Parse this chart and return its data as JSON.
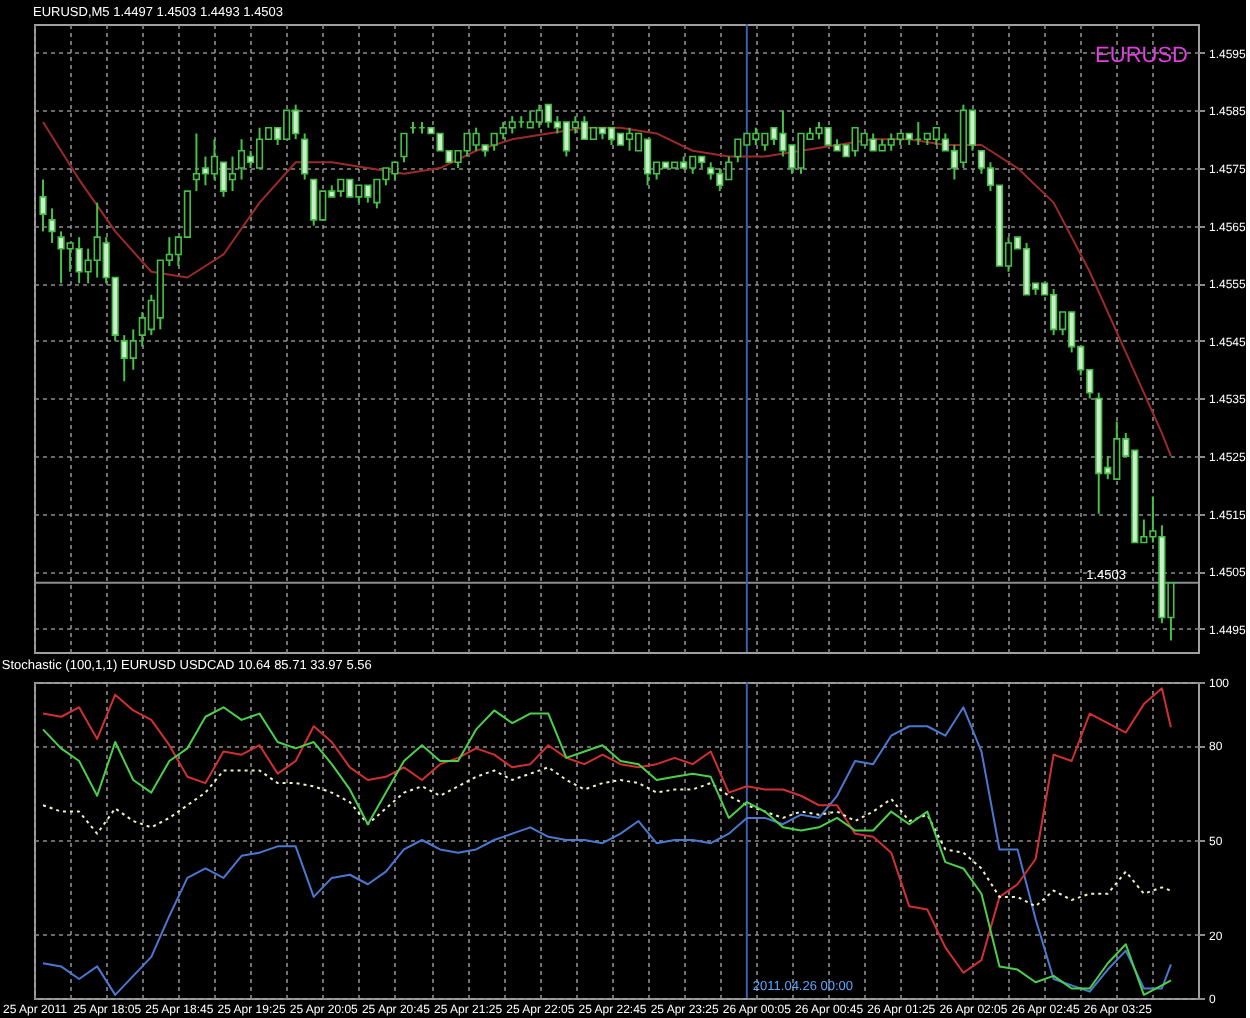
{
  "chart_data": [
    {
      "type": "candlestick",
      "title": "EURUSD,M5 1.4497 1.4503 1.4493 1.4503",
      "annotations": [
        "EURUSD"
      ],
      "color": "#46c046",
      "x": [
        "2011-04-25T17:30",
        "2011-04-25T17:35",
        "2011-04-25T17:40",
        "2011-04-25T17:45",
        "2011-04-25T17:50",
        "2011-04-25T17:55",
        "2011-04-25T18:00",
        "2011-04-25T18:05",
        "2011-04-25T18:10",
        "2011-04-25T18:15",
        "2011-04-25T18:20",
        "2011-04-25T18:25",
        "2011-04-25T18:30",
        "2011-04-25T18:35",
        "2011-04-25T18:40",
        "2011-04-25T18:45",
        "2011-04-25T18:50",
        "2011-04-25T18:55",
        "2011-04-25T19:00",
        "2011-04-25T19:05",
        "2011-04-25T19:10",
        "2011-04-25T19:15",
        "2011-04-25T19:20",
        "2011-04-25T19:25",
        "2011-04-25T19:30",
        "2011-04-25T19:35",
        "2011-04-25T19:40",
        "2011-04-25T19:45",
        "2011-04-25T19:50",
        "2011-04-25T19:55",
        "2011-04-25T20:00",
        "2011-04-25T20:05",
        "2011-04-25T20:10",
        "2011-04-25T20:15",
        "2011-04-25T20:20",
        "2011-04-25T20:25",
        "2011-04-25T20:30",
        "2011-04-25T20:35",
        "2011-04-25T20:40",
        "2011-04-25T20:45",
        "2011-04-25T20:50",
        "2011-04-25T20:55",
        "2011-04-25T21:00",
        "2011-04-25T21:05",
        "2011-04-25T21:10",
        "2011-04-25T21:15",
        "2011-04-25T21:20",
        "2011-04-25T21:25",
        "2011-04-25T21:30",
        "2011-04-25T21:35",
        "2011-04-25T21:40",
        "2011-04-25T21:45",
        "2011-04-25T21:50",
        "2011-04-25T21:55",
        "2011-04-25T22:00",
        "2011-04-25T22:05",
        "2011-04-25T22:10",
        "2011-04-25T22:15",
        "2011-04-25T22:20",
        "2011-04-25T22:25",
        "2011-04-25T22:30",
        "2011-04-25T22:35",
        "2011-04-25T22:40",
        "2011-04-25T22:45",
        "2011-04-25T22:50",
        "2011-04-25T22:55",
        "2011-04-25T23:00",
        "2011-04-25T23:05",
        "2011-04-25T23:10",
        "2011-04-25T23:15",
        "2011-04-25T23:20",
        "2011-04-25T23:25",
        "2011-04-25T23:30",
        "2011-04-25T23:35",
        "2011-04-25T23:40",
        "2011-04-25T23:45",
        "2011-04-25T23:50",
        "2011-04-25T23:55",
        "2011-04-26T00:00",
        "2011-04-26T00:05",
        "2011-04-26T00:10",
        "2011-04-26T00:15",
        "2011-04-26T00:20",
        "2011-04-26T00:25",
        "2011-04-26T00:30",
        "2011-04-26T00:35",
        "2011-04-26T00:40",
        "2011-04-26T00:45",
        "2011-04-26T00:50",
        "2011-04-26T00:55",
        "2011-04-26T01:00",
        "2011-04-26T01:05",
        "2011-04-26T01:10",
        "2011-04-26T01:15",
        "2011-04-26T01:20",
        "2011-04-26T01:25",
        "2011-04-26T01:30",
        "2011-04-26T01:35",
        "2011-04-26T01:40",
        "2011-04-26T01:45",
        "2011-04-26T01:50",
        "2011-04-26T01:55",
        "2011-04-26T02:00",
        "2011-04-26T02:05",
        "2011-04-26T02:10",
        "2011-04-26T02:15",
        "2011-04-26T02:20",
        "2011-04-26T02:25",
        "2011-04-26T02:30",
        "2011-04-26T02:35",
        "2011-04-26T02:40",
        "2011-04-26T02:45",
        "2011-04-26T02:50",
        "2011-04-26T02:55",
        "2011-04-26T03:00",
        "2011-04-26T03:05",
        "2011-04-26T03:10",
        "2011-04-26T03:15",
        "2011-04-26T03:20",
        "2011-04-26T03:25",
        "2011-04-26T03:30",
        "2011-04-26T03:35",
        "2011-04-26T03:40",
        "2011-04-26T03:45",
        "2011-04-26T03:50",
        "2011-04-26T03:55"
      ],
      "ohlc": [
        [
          1.457,
          1.4573,
          1.4564,
          1.4567
        ],
        [
          1.4566,
          1.4568,
          1.4562,
          1.4564
        ],
        [
          1.4563,
          1.4564,
          1.4555,
          1.4561
        ],
        [
          1.4561,
          1.4562,
          1.4557,
          1.4562
        ],
        [
          1.4561,
          1.4563,
          1.4555,
          1.4557
        ],
        [
          1.4557,
          1.4561,
          1.4555,
          1.4559
        ],
        [
          1.4559,
          1.4569,
          1.4556,
          1.4563
        ],
        [
          1.4562,
          1.4563,
          1.4555,
          1.4556
        ],
        [
          1.4556,
          1.4556,
          1.4545,
          1.4546
        ],
        [
          1.4545,
          1.4546,
          1.4538,
          1.4542
        ],
        [
          1.4542,
          1.4547,
          1.454,
          1.4545
        ],
        [
          1.4546,
          1.455,
          1.4544,
          1.4549
        ],
        [
          1.4547,
          1.4553,
          1.4546,
          1.4552
        ],
        [
          1.4549,
          1.4559,
          1.4547,
          1.4559
        ],
        [
          1.4559,
          1.4563,
          1.4558,
          1.456
        ],
        [
          1.456,
          1.4563,
          1.4558,
          1.4563
        ],
        [
          1.4563,
          1.4571,
          1.4563,
          1.4571
        ],
        [
          1.4573,
          1.4581,
          1.4571,
          1.4574
        ],
        [
          1.4575,
          1.4577,
          1.4572,
          1.4574
        ],
        [
          1.4574,
          1.458,
          1.4573,
          1.4577
        ],
        [
          1.4576,
          1.4576,
          1.457,
          1.4571
        ],
        [
          1.4573,
          1.4577,
          1.4571,
          1.4574
        ],
        [
          1.4575,
          1.458,
          1.4573,
          1.4578
        ],
        [
          1.4577,
          1.4578,
          1.4575,
          1.4576
        ],
        [
          1.4575,
          1.4582,
          1.4575,
          1.458
        ],
        [
          1.458,
          1.4582,
          1.458,
          1.4582
        ],
        [
          1.4582,
          1.4582,
          1.4579,
          1.458
        ],
        [
          1.458,
          1.4585,
          1.458,
          1.4585
        ],
        [
          1.4585,
          1.4586,
          1.458,
          1.4581
        ],
        [
          1.458,
          1.4581,
          1.4573,
          1.4574
        ],
        [
          1.4573,
          1.4573,
          1.4565,
          1.4566
        ],
        [
          1.4566,
          1.4571,
          1.4566,
          1.4571
        ],
        [
          1.4571,
          1.4572,
          1.457,
          1.457
        ],
        [
          1.4571,
          1.4573,
          1.457,
          1.4573
        ],
        [
          1.4573,
          1.4573,
          1.457,
          1.457
        ],
        [
          1.457,
          1.4572,
          1.4569,
          1.4572
        ],
        [
          1.4572,
          1.4572,
          1.4569,
          1.457
        ],
        [
          1.4569,
          1.4573,
          1.4568,
          1.4573
        ],
        [
          1.4573,
          1.4575,
          1.4572,
          1.4575
        ],
        [
          1.4574,
          1.4576,
          1.4573,
          1.4576
        ],
        [
          1.4577,
          1.4581,
          1.4576,
          1.4581
        ],
        [
          1.4582,
          1.4583,
          1.4581,
          1.4582
        ],
        [
          1.4582,
          1.4583,
          1.4581,
          1.4582
        ],
        [
          1.4582,
          1.4582,
          1.4581,
          1.4581
        ],
        [
          1.4581,
          1.4581,
          1.4578,
          1.4578
        ],
        [
          1.4578,
          1.4578,
          1.4576,
          1.4576
        ],
        [
          1.4576,
          1.4578,
          1.4575,
          1.4578
        ],
        [
          1.4578,
          1.4581,
          1.4577,
          1.4581
        ],
        [
          1.4579,
          1.4582,
          1.4578,
          1.4581
        ],
        [
          1.4579,
          1.4579,
          1.4577,
          1.4578
        ],
        [
          1.4579,
          1.4581,
          1.4578,
          1.4581
        ],
        [
          1.4581,
          1.4583,
          1.458,
          1.4582
        ],
        [
          1.4582,
          1.4584,
          1.4581,
          1.4583
        ],
        [
          1.4583,
          1.4584,
          1.4582,
          1.4583
        ],
        [
          1.4582,
          1.4585,
          1.4582,
          1.4583
        ],
        [
          1.4583,
          1.4586,
          1.4582,
          1.4585
        ],
        [
          1.4586,
          1.4586,
          1.4582,
          1.4583
        ],
        [
          1.4583,
          1.4584,
          1.4581,
          1.4582
        ],
        [
          1.4583,
          1.4583,
          1.4577,
          1.4578
        ],
        [
          1.4582,
          1.4584,
          1.4581,
          1.4583
        ],
        [
          1.4583,
          1.4584,
          1.458,
          1.458
        ],
        [
          1.458,
          1.4582,
          1.458,
          1.4582
        ],
        [
          1.4582,
          1.4582,
          1.458,
          1.4581
        ],
        [
          1.4582,
          1.4582,
          1.4579,
          1.458
        ],
        [
          1.4581,
          1.4581,
          1.4579,
          1.4579
        ],
        [
          1.458,
          1.4582,
          1.4578,
          1.4581
        ],
        [
          1.4578,
          1.4581,
          1.4578,
          1.4581
        ],
        [
          1.458,
          1.458,
          1.4572,
          1.4574
        ],
        [
          1.4574,
          1.4576,
          1.4573,
          1.4576
        ],
        [
          1.4576,
          1.4576,
          1.4575,
          1.4575
        ],
        [
          1.4575,
          1.4576,
          1.4575,
          1.4576
        ],
        [
          1.4576,
          1.4577,
          1.4575,
          1.4575
        ],
        [
          1.4575,
          1.4577,
          1.4574,
          1.4577
        ],
        [
          1.4577,
          1.4577,
          1.4575,
          1.4576
        ],
        [
          1.4575,
          1.4576,
          1.4573,
          1.4574
        ],
        [
          1.4574,
          1.4575,
          1.4571,
          1.4572
        ],
        [
          1.4573,
          1.4577,
          1.4573,
          1.4576
        ],
        [
          1.4577,
          1.458,
          1.4576,
          1.458
        ],
        [
          1.4579,
          1.4581,
          1.4579,
          1.4581
        ],
        [
          1.458,
          1.4582,
          1.4579,
          1.4581
        ],
        [
          1.4579,
          1.4581,
          1.4578,
          1.4581
        ],
        [
          1.4582,
          1.4582,
          1.4579,
          1.458
        ],
        [
          1.4581,
          1.4585,
          1.4577,
          1.4578
        ],
        [
          1.4579,
          1.4579,
          1.4574,
          1.4575
        ],
        [
          1.4575,
          1.4581,
          1.4574,
          1.4581
        ],
        [
          1.458,
          1.4582,
          1.458,
          1.4581
        ],
        [
          1.4581,
          1.4583,
          1.458,
          1.4582
        ],
        [
          1.4582,
          1.4582,
          1.4579,
          1.4579
        ],
        [
          1.4579,
          1.458,
          1.4578,
          1.4578
        ],
        [
          1.4579,
          1.4579,
          1.4577,
          1.4577
        ],
        [
          1.4578,
          1.4582,
          1.4577,
          1.4582
        ],
        [
          1.4579,
          1.4581,
          1.4579,
          1.4581
        ],
        [
          1.458,
          1.4581,
          1.4578,
          1.4578
        ],
        [
          1.4578,
          1.458,
          1.4578,
          1.4579
        ],
        [
          1.4579,
          1.4581,
          1.4578,
          1.458
        ],
        [
          1.458,
          1.4581,
          1.4579,
          1.4581
        ],
        [
          1.4581,
          1.4581,
          1.4579,
          1.458
        ],
        [
          1.458,
          1.4583,
          1.4579,
          1.458
        ],
        [
          1.458,
          1.4581,
          1.4579,
          1.4581
        ],
        [
          1.458,
          1.4582,
          1.4579,
          1.4582
        ],
        [
          1.458,
          1.4581,
          1.4578,
          1.4578
        ],
        [
          1.4578,
          1.4579,
          1.4573,
          1.4575
        ],
        [
          1.4576,
          1.4586,
          1.4575,
          1.4585
        ],
        [
          1.4585,
          1.4585,
          1.4578,
          1.4579
        ],
        [
          1.4578,
          1.4578,
          1.4574,
          1.4575
        ],
        [
          1.4575,
          1.4576,
          1.4571,
          1.4572
        ],
        [
          1.4572,
          1.4572,
          1.4558,
          1.4558
        ],
        [
          1.4558,
          1.4563,
          1.4557,
          1.4562
        ],
        [
          1.4563,
          1.4563,
          1.4561,
          1.4561
        ],
        [
          1.4561,
          1.4562,
          1.4553,
          1.4553
        ],
        [
          1.4555,
          1.4555,
          1.4553,
          1.4554
        ],
        [
          1.4555,
          1.4555,
          1.4553,
          1.4553
        ],
        [
          1.4553,
          1.4554,
          1.4546,
          1.4547
        ],
        [
          1.4547,
          1.455,
          1.4546,
          1.455
        ],
        [
          1.455,
          1.455,
          1.4543,
          1.4544
        ],
        [
          1.4544,
          1.4544,
          1.4539,
          1.454
        ],
        [
          1.454,
          1.454,
          1.4535,
          1.4536
        ],
        [
          1.4535,
          1.4536,
          1.4515,
          1.4522
        ],
        [
          1.4523,
          1.4525,
          1.4521,
          1.4522
        ],
        [
          1.4521,
          1.4531,
          1.4521,
          1.4528
        ],
        [
          1.4528,
          1.4529,
          1.4525,
          1.4525
        ],
        [
          1.4526,
          1.4526,
          1.451,
          1.451
        ],
        [
          1.451,
          1.4514,
          1.451,
          1.4511
        ],
        [
          1.4511,
          1.4518,
          1.451,
          1.4512
        ],
        [
          1.4511,
          1.4513,
          1.4496,
          1.4497
        ],
        [
          1.4497,
          1.4503,
          1.4493,
          1.4503
        ]
      ],
      "series": [
        {
          "type": "line",
          "color": "#9c2a2a",
          "x": [
            "2011-04-25T17:30",
            "2011-04-25T17:50",
            "2011-04-25T18:10",
            "2011-04-25T18:30",
            "2011-04-25T18:50",
            "2011-04-25T19:10",
            "2011-04-25T19:30",
            "2011-04-25T19:50",
            "2011-04-25T20:10",
            "2011-04-25T20:30",
            "2011-04-25T20:50",
            "2011-04-25T21:10",
            "2011-04-25T21:30",
            "2011-04-25T21:50",
            "2011-04-25T22:10",
            "2011-04-25T22:30",
            "2011-04-25T22:50",
            "2011-04-25T23:10",
            "2011-04-25T23:30",
            "2011-04-25T23:50",
            "2011-04-26T00:10",
            "2011-04-26T00:30",
            "2011-04-26T00:50",
            "2011-04-26T01:10",
            "2011-04-26T01:30",
            "2011-04-26T01:50",
            "2011-04-26T02:10",
            "2011-04-26T02:30",
            "2011-04-26T02:50",
            "2011-04-26T03:10",
            "2011-04-26T03:30",
            "2011-04-26T03:50",
            "2011-04-26T03:55"
          ],
          "values": [
            1.4583,
            1.4573,
            1.4564,
            1.4557,
            1.4556,
            1.456,
            1.4569,
            1.4576,
            1.4576,
            1.4575,
            1.4574,
            1.4575,
            1.4578,
            1.458,
            1.4581,
            1.4582,
            1.4582,
            1.4581,
            1.4578,
            1.4577,
            1.4577,
            1.4578,
            1.4579,
            1.458,
            1.458,
            1.4579,
            1.4579,
            1.4575,
            1.4569,
            1.4557,
            1.4543,
            1.4529,
            1.4525
          ]
        }
      ],
      "xlim": [
        "2011-04-25T17:25",
        "2011-04-26T04:10"
      ],
      "xticks": [
        {
          "value": "2011-04-25T17:25",
          "label": null
        },
        {
          "value": "2011-04-25T17:45",
          "label": null
        },
        {
          "value": "2011-04-25T18:05",
          "label": null
        },
        {
          "value": "2011-04-25T18:25",
          "label": null
        },
        {
          "value": "2011-04-25T18:45",
          "label": null
        },
        {
          "value": "2011-04-25T19:05",
          "label": null
        },
        {
          "value": "2011-04-25T19:25",
          "label": null
        },
        {
          "value": "2011-04-25T19:45",
          "label": null
        },
        {
          "value": "2011-04-25T20:05",
          "label": null
        },
        {
          "value": "2011-04-25T20:25",
          "label": null
        },
        {
          "value": "2011-04-25T20:45",
          "label": null
        },
        {
          "value": "2011-04-25T21:05",
          "label": null
        },
        {
          "value": "2011-04-25T21:25",
          "label": null
        },
        {
          "value": "2011-04-25T21:45",
          "label": null
        },
        {
          "value": "2011-04-25T22:05",
          "label": null
        },
        {
          "value": "2011-04-25T22:25",
          "label": null
        },
        {
          "value": "2011-04-25T22:45",
          "label": null
        },
        {
          "value": "2011-04-25T23:05",
          "label": null
        },
        {
          "value": "2011-04-25T23:25",
          "label": null
        },
        {
          "value": "2011-04-25T23:45",
          "label": null
        },
        {
          "value": "2011-04-26T00:05",
          "label": null
        },
        {
          "value": "2011-04-26T00:25",
          "label": null
        },
        {
          "value": "2011-04-26T00:45",
          "label": null
        },
        {
          "value": "2011-04-26T01:05",
          "label": null
        },
        {
          "value": "2011-04-26T01:25",
          "label": null
        },
        {
          "value": "2011-04-26T01:45",
          "label": null
        },
        {
          "value": "2011-04-26T02:05",
          "label": null
        },
        {
          "value": "2011-04-26T02:25",
          "label": null
        },
        {
          "value": "2011-04-26T02:45",
          "label": null
        },
        {
          "value": "2011-04-26T03:05",
          "label": null
        },
        {
          "value": "2011-04-26T03:25",
          "label": null
        },
        {
          "value": "2011-04-26T03:45",
          "label": null
        }
      ],
      "ylim": [
        1.4491,
        1.46
      ],
      "yticks": [
        1.4495,
        1.4505,
        1.4515,
        1.4525,
        1.4535,
        1.4545,
        1.4555,
        1.4565,
        1.4575,
        1.4585,
        1.4595
      ],
      "tick_labels": "y",
      "grid": true,
      "ref_lines": [
        {
          "axis": "y",
          "value": 1.4503,
          "label": "1.4503",
          "color": "#8c8c8c"
        },
        {
          "axis": "x",
          "value": "2011-04-26T00:00",
          "color": "#3b5fa8"
        }
      ]
    },
    {
      "type": "line",
      "title": "Stochastic (100,1,1) EURUSD USDCAD 10.64 85.71 33.97 5.56",
      "x": [
        "2011-04-25T17:30",
        "2011-04-25T17:40",
        "2011-04-25T17:50",
        "2011-04-25T18:00",
        "2011-04-25T18:10",
        "2011-04-25T18:20",
        "2011-04-25T18:30",
        "2011-04-25T18:40",
        "2011-04-25T18:50",
        "2011-04-25T19:00",
        "2011-04-25T19:10",
        "2011-04-25T19:20",
        "2011-04-25T19:30",
        "2011-04-25T19:40",
        "2011-04-25T19:50",
        "2011-04-25T20:00",
        "2011-04-25T20:10",
        "2011-04-25T20:20",
        "2011-04-25T20:30",
        "2011-04-25T20:40",
        "2011-04-25T20:50",
        "2011-04-25T21:00",
        "2011-04-25T21:10",
        "2011-04-25T21:20",
        "2011-04-25T21:30",
        "2011-04-25T21:40",
        "2011-04-25T21:50",
        "2011-04-25T22:00",
        "2011-04-25T22:10",
        "2011-04-25T22:20",
        "2011-04-25T22:30",
        "2011-04-25T22:40",
        "2011-04-25T22:50",
        "2011-04-25T23:00",
        "2011-04-25T23:10",
        "2011-04-25T23:20",
        "2011-04-25T23:30",
        "2011-04-25T23:40",
        "2011-04-25T23:50",
        "2011-04-26T00:00",
        "2011-04-26T00:10",
        "2011-04-26T00:20",
        "2011-04-26T00:30",
        "2011-04-26T00:40",
        "2011-04-26T00:50",
        "2011-04-26T01:00",
        "2011-04-26T01:10",
        "2011-04-26T01:20",
        "2011-04-26T01:30",
        "2011-04-26T01:40",
        "2011-04-26T01:50",
        "2011-04-26T02:00",
        "2011-04-26T02:10",
        "2011-04-26T02:20",
        "2011-04-26T02:30",
        "2011-04-26T02:40",
        "2011-04-26T02:50",
        "2011-04-26T03:00",
        "2011-04-26T03:10",
        "2011-04-26T03:20",
        "2011-04-26T03:30",
        "2011-04-26T03:40",
        "2011-04-26T03:50",
        "2011-04-26T03:55"
      ],
      "series": [
        {
          "color": "#4a78d0",
          "values": [
            11,
            10,
            6,
            10,
            1,
            7,
            13,
            26,
            38,
            41,
            38,
            45,
            46,
            48,
            48,
            32,
            38,
            39,
            36,
            40,
            47,
            50,
            47,
            46,
            47,
            50,
            52,
            54,
            51,
            50,
            50,
            49,
            52,
            56,
            49,
            50,
            50,
            49,
            52,
            57,
            57,
            55,
            58,
            57,
            64,
            75,
            74,
            83,
            86,
            86,
            83,
            92,
            78,
            47,
            47,
            25,
            6,
            4,
            2,
            9,
            15,
            3,
            3,
            10.64
          ]
        },
        {
          "color": "#d03030",
          "values": [
            90,
            89,
            92,
            82,
            96,
            91,
            88,
            80,
            70,
            68,
            78,
            77,
            80,
            71,
            75,
            86,
            81,
            73,
            69,
            70,
            73,
            69,
            74,
            76,
            79,
            77,
            73,
            74,
            80,
            76,
            74,
            77,
            74,
            73,
            74,
            76,
            74,
            78,
            65,
            67,
            66,
            66,
            64,
            61,
            61,
            52,
            51,
            46,
            29,
            28,
            16,
            8,
            12,
            32,
            36,
            44,
            77,
            75,
            90,
            87,
            84,
            93,
            98,
            85.71
          ]
        },
        {
          "color": "#f2f2c0",
          "line_style": "dotted",
          "values": [
            61,
            59,
            59,
            52,
            60,
            56,
            54,
            57,
            61,
            65,
            72,
            72,
            72,
            68,
            68,
            67,
            65,
            62,
            55,
            60,
            65,
            67,
            64,
            67,
            70,
            72,
            69,
            71,
            73,
            69,
            66,
            68,
            69,
            68,
            65,
            66,
            66,
            68,
            64,
            61,
            59,
            57,
            59,
            58,
            59,
            56,
            59,
            63,
            56,
            58,
            47,
            46,
            41,
            32,
            32,
            29,
            34,
            31,
            33,
            33,
            40,
            33,
            35,
            33.97
          ]
        },
        {
          "color": "#4ad04a",
          "values": [
            85,
            79,
            75,
            64,
            81,
            69,
            65,
            75,
            79,
            89,
            92,
            88,
            90,
            81,
            79,
            81,
            74,
            66,
            55,
            65,
            75,
            80,
            75,
            75,
            85,
            91,
            87,
            90,
            90,
            76,
            78,
            80,
            75,
            74,
            69,
            70,
            71,
            70,
            57,
            62,
            59,
            54,
            53,
            54,
            57,
            53,
            53,
            59,
            55,
            59,
            43,
            41,
            33,
            10,
            9,
            5,
            7,
            3,
            3,
            11,
            17,
            1,
            4,
            5.56
          ]
        }
      ],
      "xlim": [
        "2011-04-25T17:25",
        "2011-04-26T04:10"
      ],
      "xticks": [
        {
          "value": "2011-04-25T17:25",
          "label": "25 Apr 2011"
        },
        {
          "value": "2011-04-25T17:45",
          "label": null
        },
        {
          "value": "2011-04-25T18:05",
          "label": "25 Apr 18:05"
        },
        {
          "value": "2011-04-25T18:25",
          "label": null
        },
        {
          "value": "2011-04-25T18:45",
          "label": "25 Apr 18:45"
        },
        {
          "value": "2011-04-25T19:05",
          "label": null
        },
        {
          "value": "2011-04-25T19:25",
          "label": "25 Apr 19:25"
        },
        {
          "value": "2011-04-25T19:45",
          "label": null
        },
        {
          "value": "2011-04-25T20:05",
          "label": "25 Apr 20:05"
        },
        {
          "value": "2011-04-25T20:25",
          "label": null
        },
        {
          "value": "2011-04-25T20:45",
          "label": "25 Apr 20:45"
        },
        {
          "value": "2011-04-25T21:05",
          "label": null
        },
        {
          "value": "2011-04-25T21:25",
          "label": "25 Apr 21:25"
        },
        {
          "value": "2011-04-25T21:45",
          "label": null
        },
        {
          "value": "2011-04-25T22:05",
          "label": "25 Apr 22:05"
        },
        {
          "value": "2011-04-25T22:25",
          "label": null
        },
        {
          "value": "2011-04-25T22:45",
          "label": "25 Apr 22:45"
        },
        {
          "value": "2011-04-25T23:05",
          "label": null
        },
        {
          "value": "2011-04-25T23:25",
          "label": "25 Apr 23:25"
        },
        {
          "value": "2011-04-25T23:45",
          "label": null
        },
        {
          "value": "2011-04-26T00:05",
          "label": "26 Apr 00:05"
        },
        {
          "value": "2011-04-26T00:25",
          "label": null
        },
        {
          "value": "2011-04-26T00:45",
          "label": "26 Apr 00:45"
        },
        {
          "value": "2011-04-26T01:05",
          "label": null
        },
        {
          "value": "2011-04-26T01:25",
          "label": "26 Apr 01:25"
        },
        {
          "value": "2011-04-26T01:45",
          "label": null
        },
        {
          "value": "2011-04-26T02:05",
          "label": "26 Apr 02:05"
        },
        {
          "value": "2011-04-26T02:25",
          "label": null
        },
        {
          "value": "2011-04-26T02:45",
          "label": "26 Apr 02:45"
        },
        {
          "value": "2011-04-26T03:05",
          "label": null
        },
        {
          "value": "2011-04-26T03:25",
          "label": "26 Apr 03:25"
        },
        {
          "value": "2011-04-26T03:45",
          "label": null
        }
      ],
      "ylim": [
        0,
        100
      ],
      "yticks": [
        100,
        80,
        50,
        20,
        0
      ],
      "grid": true,
      "ref_lines": [
        {
          "axis": "x",
          "value": "2011-04-26T00:00",
          "label": "2011.04.26 00:00",
          "color": "#3b5fa8"
        }
      ]
    }
  ]
}
